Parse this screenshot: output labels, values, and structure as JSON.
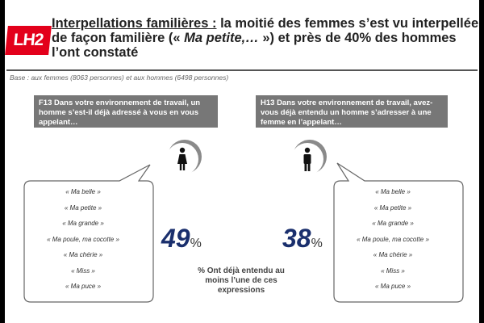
{
  "logo": {
    "text": "LH2"
  },
  "header": {
    "title_lead": "Interpellations familières :",
    "title_mid": " la moitié des femmes s’est vu interpellée de façon familière (« ",
    "title_italic": "Ma petite,… ",
    "title_end": "») et près de 40% des hommes l’ont constaté",
    "base_note": "Base : aux femmes (8063 personnes) et aux hommes (6498 personnes)"
  },
  "colors": {
    "accent_red": "#e3001b",
    "percent_blue": "#1a2f6d",
    "question_bg": "#777777"
  },
  "icons": {
    "women": "woman-icon",
    "men": "man-icon"
  },
  "chart_data": {
    "type": "table",
    "caption": "% Ont déjà entendu au moins l’une de ces expressions",
    "series": [
      {
        "question": "F13 Dans votre environnement de travail, un homme s’est-il déjà adressé à vous en vous appelant…",
        "value": 49,
        "value_label": "49",
        "unit": "%",
        "expressions": [
          "« Ma belle »",
          "« Ma petite »",
          "« Ma grande »",
          "« Ma poule, ma cocotte »",
          "« Ma chérie »",
          "« Miss »",
          "« Ma puce »"
        ]
      },
      {
        "question": "H13 Dans votre environnement de travail, avez-vous déjà entendu un homme s’adresser à une femme en l’appelant…",
        "value": 38,
        "value_label": "38",
        "unit": "%",
        "expressions": [
          "« Ma belle »",
          "« Ma petite »",
          "« Ma grande »",
          "« Ma poule, ma cocotte »",
          "« Ma chérie »",
          "« Miss »",
          "« Ma puce »"
        ]
      }
    ]
  }
}
